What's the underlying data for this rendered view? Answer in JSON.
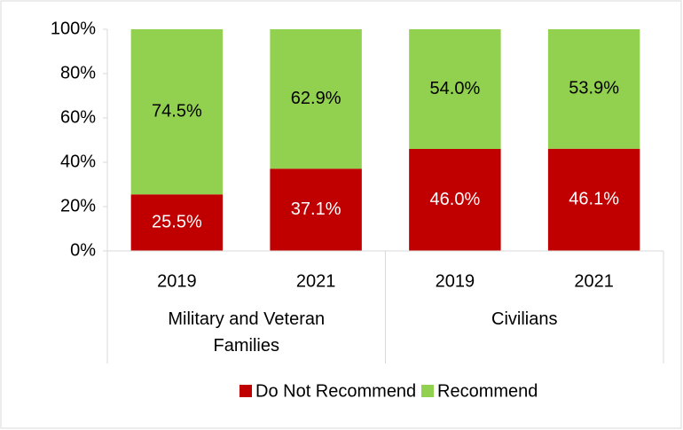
{
  "chart_data": {
    "type": "stacked_bar",
    "groups": [
      {
        "name": "Military and Veteran Families",
        "categories": [
          "2019",
          "2021"
        ]
      },
      {
        "name": "Civilians",
        "categories": [
          "2019",
          "2021"
        ]
      }
    ],
    "series": [
      {
        "name": "Do Not Recommend",
        "color": "#c00000",
        "label_color": "#ffffff",
        "values": [
          25.5,
          37.1,
          46.0,
          46.1
        ],
        "value_labels": [
          "25.5%",
          "37.1%",
          "46.0%",
          "46.1%"
        ]
      },
      {
        "name": "Recommend",
        "color": "#92d050",
        "label_color": "#000000",
        "values": [
          74.5,
          62.9,
          54.0,
          53.9
        ],
        "value_labels": [
          "74.5%",
          "62.9%",
          "54.0%",
          "53.9%"
        ]
      }
    ],
    "ylim": [
      0,
      100
    ],
    "yticks": [
      {
        "value": 0,
        "label": "0%"
      },
      {
        "value": 20,
        "label": "20%"
      },
      {
        "value": 40,
        "label": "40%"
      },
      {
        "value": 60,
        "label": "60%"
      },
      {
        "value": 80,
        "label": "80%"
      },
      {
        "value": 100,
        "label": "100%"
      }
    ],
    "grid": false,
    "legend": "bottom"
  }
}
